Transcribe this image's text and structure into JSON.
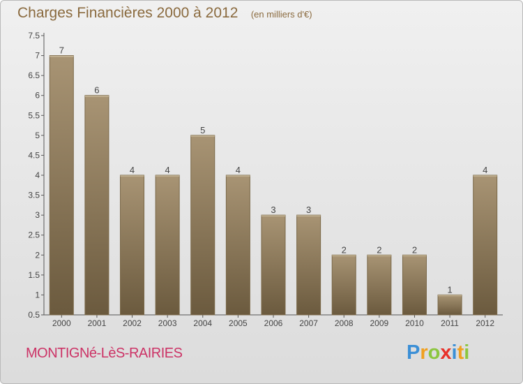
{
  "chart_data": {
    "type": "bar",
    "title": "Charges Financières 2000 à 2012",
    "subtitle": "(en milliers d'€)",
    "categories": [
      "2000",
      "2001",
      "2002",
      "2003",
      "2004",
      "2005",
      "2006",
      "2007",
      "2008",
      "2009",
      "2010",
      "2011",
      "2012"
    ],
    "values": [
      7,
      6,
      4,
      4,
      5,
      4,
      3,
      3,
      2,
      2,
      2,
      1,
      4
    ],
    "data_labels": [
      "7",
      "6",
      "4",
      "4",
      "5",
      "4",
      "3",
      "3",
      "2",
      "2",
      "2",
      "1",
      "4"
    ],
    "y_ticks": [
      "0.5",
      "1",
      "1.5",
      "2",
      "2.5",
      "3",
      "3.5",
      "4",
      "4.5",
      "5",
      "5.5",
      "6",
      "6.5",
      "7",
      "7.5"
    ],
    "ylim": [
      0.5,
      7.5
    ],
    "xlabel": "",
    "ylabel": "",
    "grid": false,
    "bar_color": "#8f7b5c"
  },
  "footer": {
    "commune": "MONTIGNé-LèS-RAIRIES"
  },
  "logo": {
    "letters": [
      "P",
      "r",
      "o",
      "x",
      "i",
      "t",
      "i"
    ],
    "colors": [
      "#3b8fd6",
      "#f0a020",
      "#8cc63f",
      "#e8312a",
      "#3b8fd6",
      "#f0a020",
      "#8cc63f"
    ]
  }
}
